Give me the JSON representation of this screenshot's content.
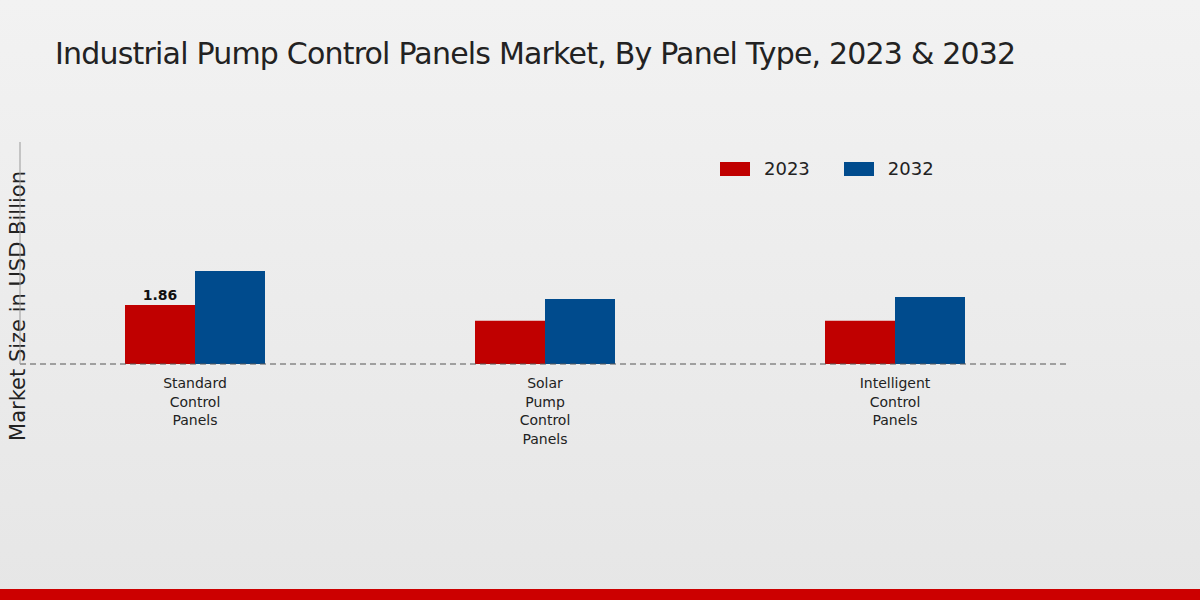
{
  "chart_data": {
    "type": "bar",
    "title": "Industrial Pump Control Panels Market, By Panel Type, 2023 & 2032",
    "y_label": "Market Size in USD Billion",
    "categories": [
      "Standard Control Panels",
      "Solar Pump Control Panels",
      "Intelligent Control Panels"
    ],
    "series": [
      {
        "name": "2023",
        "color": "#c00000",
        "values": [
          1.86,
          1.36,
          1.36
        ],
        "data_labels": true,
        "value_labels": [
          "1.86",
          null,
          null
        ]
      },
      {
        "name": "2032",
        "color": "#004b8d",
        "values": [
          2.93,
          2.05,
          2.11
        ]
      }
    ],
    "ylim": [
      0,
      7
    ],
    "grid": false,
    "legend": "top right",
    "tick_labels": "x"
  }
}
